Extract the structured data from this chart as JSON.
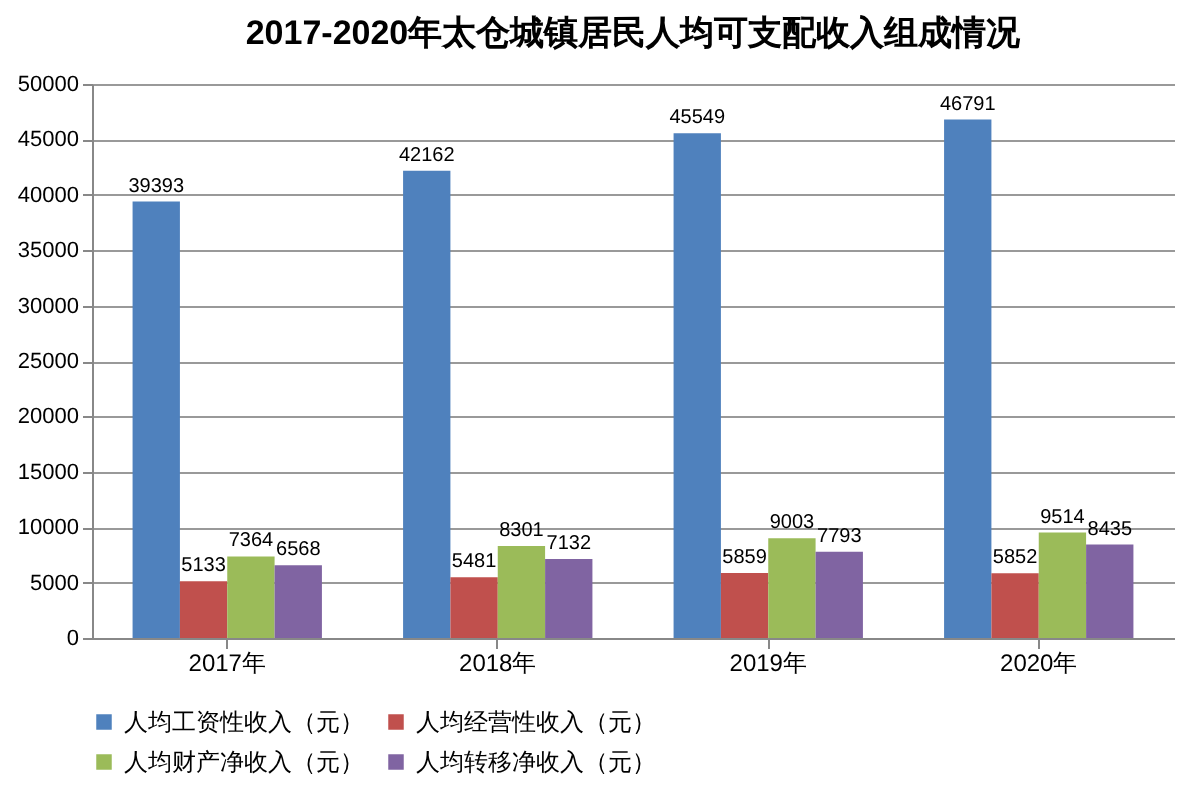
{
  "chart_data": {
    "type": "bar",
    "title": "2017-2020年太仓城镇居民人均可支配收入组成情况",
    "categories": [
      "2017年",
      "2018年",
      "2019年",
      "2020年"
    ],
    "series": [
      {
        "name": "人均工资性收入（元）",
        "color": "#4f81bd",
        "values": [
          39393,
          42162,
          45549,
          46791
        ]
      },
      {
        "name": "人均经营性收入（元）",
        "color": "#c0504d",
        "values": [
          5133,
          5481,
          5859,
          5852
        ]
      },
      {
        "name": "人均财产净收入（元）",
        "color": "#9bbb59",
        "values": [
          7364,
          8301,
          9003,
          9514
        ]
      },
      {
        "name": "人均转移净收入（元）",
        "color": "#8064a2",
        "values": [
          6568,
          7132,
          7793,
          8435
        ]
      }
    ],
    "ylim": [
      0,
      50000
    ],
    "yticks": [
      0,
      5000,
      10000,
      15000,
      20000,
      25000,
      30000,
      35000,
      40000,
      45000,
      50000
    ],
    "grid": "y",
    "legend": "bottom",
    "data_labels": true
  }
}
